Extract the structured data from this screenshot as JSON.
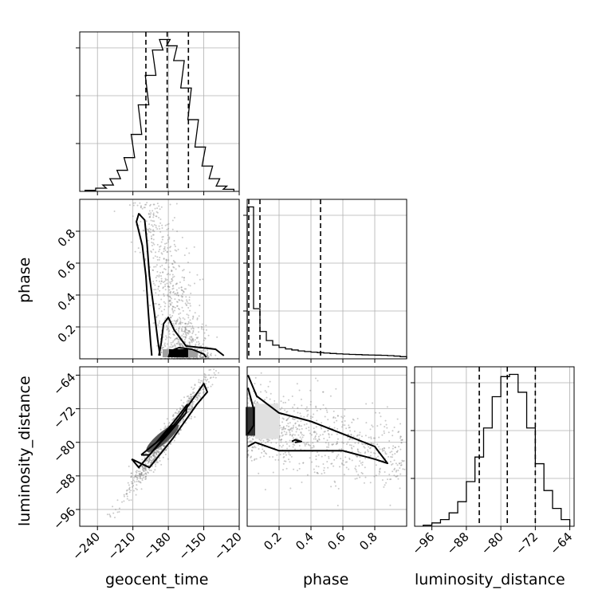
{
  "chart_data": {
    "type": "corner",
    "parameters": [
      "geocent_time",
      "phase",
      "luminosity_distance"
    ],
    "grid": true,
    "diagonal": [
      {
        "parameter": "geocent_time",
        "xlim": [
          -255,
          -120
        ],
        "xticks": [
          -240,
          -210,
          -180,
          -150,
          -120
        ],
        "quantiles": [
          -199,
          -181,
          -163
        ],
        "histogram": [
          {
            "x": -246,
            "count": 0.5
          },
          {
            "x": -237,
            "count": 1.5
          },
          {
            "x": -231,
            "count": 3
          },
          {
            "x": -225,
            "count": 6
          },
          {
            "x": -219,
            "count": 10
          },
          {
            "x": -213,
            "count": 16
          },
          {
            "x": -207,
            "count": 27
          },
          {
            "x": -201,
            "count": 41
          },
          {
            "x": -195,
            "count": 55
          },
          {
            "x": -189,
            "count": 67
          },
          {
            "x": -183,
            "count": 72
          },
          {
            "x": -177,
            "count": 69
          },
          {
            "x": -171,
            "count": 62
          },
          {
            "x": -165,
            "count": 49
          },
          {
            "x": -159,
            "count": 34
          },
          {
            "x": -153,
            "count": 21
          },
          {
            "x": -147,
            "count": 12
          },
          {
            "x": -141,
            "count": 6
          },
          {
            "x": -135,
            "count": 2.5
          },
          {
            "x": -129,
            "count": 1
          }
        ]
      },
      {
        "parameter": "phase",
        "xlim": [
          0.0,
          1.0
        ],
        "xticks": [
          "0.2",
          "0.4",
          "0.6",
          "0.8"
        ],
        "quantiles": [
          0.01,
          0.08,
          0.46
        ],
        "histogram": [
          {
            "x": 0.02,
            "count": 100
          },
          {
            "x": 0.06,
            "count": 33
          },
          {
            "x": 0.1,
            "count": 18
          },
          {
            "x": 0.14,
            "count": 12
          },
          {
            "x": 0.18,
            "count": 9
          },
          {
            "x": 0.22,
            "count": 7.5
          },
          {
            "x": 0.26,
            "count": 6.5
          },
          {
            "x": 0.3,
            "count": 5.8
          },
          {
            "x": 0.34,
            "count": 5.2
          },
          {
            "x": 0.38,
            "count": 4.8
          },
          {
            "x": 0.42,
            "count": 4.4
          },
          {
            "x": 0.46,
            "count": 4.1
          },
          {
            "x": 0.5,
            "count": 3.8
          },
          {
            "x": 0.54,
            "count": 3.5
          },
          {
            "x": 0.58,
            "count": 3.3
          },
          {
            "x": 0.62,
            "count": 3.1
          },
          {
            "x": 0.66,
            "count": 2.9
          },
          {
            "x": 0.7,
            "count": 2.8
          },
          {
            "x": 0.74,
            "count": 2.6
          },
          {
            "x": 0.78,
            "count": 2.5
          },
          {
            "x": 0.82,
            "count": 2.4
          },
          {
            "x": 0.86,
            "count": 2.3
          },
          {
            "x": 0.9,
            "count": 2.1
          },
          {
            "x": 0.94,
            "count": 1.8
          },
          {
            "x": 0.98,
            "count": 1.4
          }
        ]
      },
      {
        "parameter": "luminosity_distance",
        "xlim": [
          -100,
          -63
        ],
        "xticks": [
          -96,
          -88,
          -80,
          -72,
          -64
        ],
        "quantiles": [
          -85,
          -78.5,
          -72
        ],
        "histogram": [
          {
            "x": -97,
            "count": 0.5
          },
          {
            "x": -95,
            "count": 1.5
          },
          {
            "x": -93,
            "count": 3
          },
          {
            "x": -91,
            "count": 6
          },
          {
            "x": -89,
            "count": 11
          },
          {
            "x": -87,
            "count": 20
          },
          {
            "x": -85,
            "count": 31
          },
          {
            "x": -83,
            "count": 44
          },
          {
            "x": -81,
            "count": 58
          },
          {
            "x": -79,
            "count": 67
          },
          {
            "x": -77,
            "count": 68
          },
          {
            "x": -75,
            "count": 60
          },
          {
            "x": -73,
            "count": 44
          },
          {
            "x": -71,
            "count": 28
          },
          {
            "x": -69,
            "count": 16
          },
          {
            "x": -67,
            "count": 8
          },
          {
            "x": -65,
            "count": 3
          }
        ]
      }
    ],
    "pairs": [
      {
        "x": "geocent_time",
        "y": "phase",
        "xlim": [
          -255,
          -120
        ],
        "ylim": [
          0.0,
          1.0
        ],
        "yticks": [
          "0.2",
          "0.4",
          "0.6",
          "0.8"
        ],
        "contours": [
          [
            [
              -187,
              0.02
            ],
            [
              -189,
              0.12
            ],
            [
              -192,
              0.3
            ],
            [
              -196,
              0.52
            ],
            [
              -198,
              0.72
            ],
            [
              -200,
              0.87
            ],
            [
              -205,
              0.91
            ],
            [
              -207,
              0.86
            ],
            [
              -202,
              0.71
            ],
            [
              -199,
              0.52
            ],
            [
              -197,
              0.3
            ],
            [
              -195,
              0.1
            ],
            [
              -194,
              0.02
            ]
          ],
          [
            [
              -188,
              0.02
            ],
            [
              -186,
              0.1
            ],
            [
              -184,
              0.22
            ],
            [
              -180,
              0.26
            ],
            [
              -175,
              0.18
            ],
            [
              -165,
              0.08
            ],
            [
              -152,
              0.07
            ],
            [
              -140,
              0.06
            ],
            [
              -133,
              0.02
            ]
          ],
          [
            [
              -180,
              0.01
            ],
            [
              -178,
              0.05
            ],
            [
              -171,
              0.07
            ],
            [
              -160,
              0.06
            ],
            [
              -150,
              0.03
            ],
            [
              -148,
              0.01
            ]
          ]
        ],
        "density_peak": [
          -170,
          0.015
        ]
      },
      {
        "x": "geocent_time",
        "y": "luminosity_distance",
        "xlim": [
          -255,
          -120
        ],
        "ylim": [
          -100,
          -62
        ],
        "contours": [
          [
            [
              -211,
              -84
            ],
            [
              -205,
              -86
            ],
            [
              -190,
              -81
            ],
            [
              -170,
              -74
            ],
            [
              -150,
              -66
            ],
            [
              -147,
              -68
            ],
            [
              -156,
              -71
            ],
            [
              -176,
              -79
            ],
            [
              -196,
              -86
            ],
            [
              -211,
              -84
            ]
          ],
          [
            [
              -203,
              -83
            ],
            [
              -190,
              -80
            ],
            [
              -175,
              -75
            ],
            [
              -164,
              -71
            ],
            [
              -165,
              -73
            ],
            [
              -180,
              -78
            ],
            [
              -196,
              -83
            ],
            [
              -203,
              -83
            ]
          ],
          [
            [
              -190,
              -80
            ],
            [
              -180,
              -77
            ],
            [
              -176,
              -76
            ],
            [
              -181,
              -78
            ],
            [
              -190,
              -80
            ]
          ]
        ],
        "density_peak": [
          -185,
          -79
        ]
      },
      {
        "x": "phase",
        "y": "luminosity_distance",
        "xlim": [
          0.0,
          1.0
        ],
        "ylim": [
          -100,
          -62
        ],
        "contours": [
          [
            [
              0.005,
              -64
            ],
            [
              0.06,
              -69
            ],
            [
              0.2,
              -73
            ],
            [
              0.4,
              -75
            ],
            [
              0.6,
              -78
            ],
            [
              0.8,
              -81
            ],
            [
              0.88,
              -85
            ],
            [
              0.8,
              -84
            ],
            [
              0.6,
              -82
            ],
            [
              0.4,
              -82
            ],
            [
              0.2,
              -82
            ],
            [
              0.05,
              -80
            ],
            [
              0.005,
              -81
            ]
          ],
          [
            [
              0.005,
              -67
            ],
            [
              0.04,
              -72
            ],
            [
              0.04,
              -76
            ],
            [
              0.005,
              -78
            ]
          ],
          [
            [
              0.3,
              -80
            ],
            [
              0.34,
              -79.8
            ],
            [
              0.3,
              -79.4
            ],
            [
              0.28,
              -79.8
            ]
          ]
        ],
        "density_peak": [
          0.01,
          -75
        ]
      }
    ]
  }
}
